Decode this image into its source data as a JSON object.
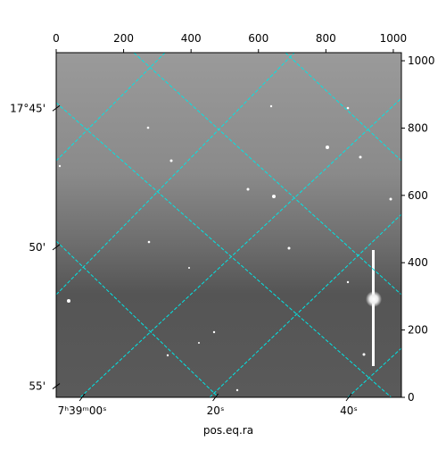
{
  "chart_data": {
    "type": "image",
    "xlabel": "pos.eq.ra",
    "xlim": [
      0,
      1024
    ],
    "xticks": [
      0,
      200,
      400,
      600,
      800,
      1000
    ],
    "ylim": [
      0,
      1024
    ],
    "yticks": [
      0,
      200,
      400,
      600,
      800,
      1000
    ],
    "ra_lim": [
      -3.9,
      47.9
    ],
    "ra_ticks": [
      {
        "value": 0,
        "label": "7ʰ39ᵐ00ˢ"
      },
      {
        "value": 20,
        "label": "20ˢ"
      },
      {
        "value": 40,
        "label": "40ˢ"
      }
    ],
    "dec_lim": [
      43.0,
      55.4
    ],
    "dec_ticks": [
      {
        "value": 45,
        "label": "17°45'"
      },
      {
        "value": 50,
        "label": "50'"
      },
      {
        "value": 55,
        "label": "55'"
      }
    ],
    "grid_color": "#00e5e5"
  }
}
